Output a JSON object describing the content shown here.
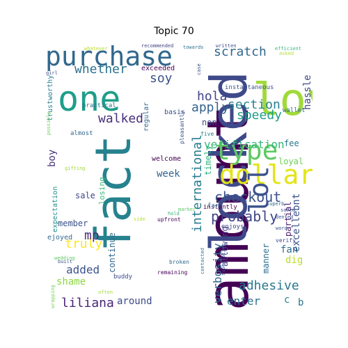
{
  "title": "Topic 70",
  "palette": "viridis",
  "words": [
    {
      "text": "amount",
      "size": 82,
      "color": "#440154"
    },
    {
      "text": "locked",
      "size": 72,
      "color": "#3e4989"
    },
    {
      "text": "fact",
      "size": 70,
      "color": "#26828e"
    },
    {
      "text": "love",
      "size": 64,
      "color": "#a0da39"
    },
    {
      "text": "one",
      "size": 50,
      "color": "#1f9e89"
    },
    {
      "text": "purchase",
      "size": 38,
      "color": "#31688e"
    },
    {
      "text": "type",
      "size": 38,
      "color": "#5ec962"
    },
    {
      "text": "dollar",
      "size": 38,
      "color": "#e3e418"
    },
    {
      "text": "lol",
      "size": 38,
      "color": "#3b528b"
    },
    {
      "text": "checkout",
      "size": 20,
      "color": "#3b528b"
    },
    {
      "text": "probably",
      "size": 20,
      "color": "#404688"
    },
    {
      "text": "international",
      "size": 18,
      "color": "#287c8e"
    },
    {
      "text": "scratch",
      "size": 18,
      "color": "#31688e"
    },
    {
      "text": "section",
      "size": 18,
      "color": "#26828e"
    },
    {
      "text": "speedy",
      "size": 18,
      "color": "#1f9e89"
    },
    {
      "text": "apply",
      "size": 18,
      "color": "#33638d"
    },
    {
      "text": "whether",
      "size": 18,
      "color": "#2c728e"
    },
    {
      "text": "soy",
      "size": 18,
      "color": "#3b528b"
    },
    {
      "text": "hola",
      "size": 18,
      "color": "#414487"
    },
    {
      "text": "verification",
      "size": 16,
      "color": "#35b779"
    },
    {
      "text": "walked",
      "size": 18,
      "color": "#472d7b"
    },
    {
      "text": "adhesive",
      "size": 18,
      "color": "#2a788e"
    },
    {
      "text": "liliana",
      "size": 18,
      "color": "#482475"
    },
    {
      "text": "truly",
      "size": 18,
      "color": "#fde725"
    },
    {
      "text": "mp",
      "size": 18,
      "color": "#472c7a"
    },
    {
      "text": "added",
      "size": 16,
      "color": "#3b528b"
    },
    {
      "text": "verbosity",
      "size": 16,
      "color": "#31688e"
    },
    {
      "text": "enter",
      "size": 16,
      "color": "#2c728e"
    },
    {
      "text": "excellebnt",
      "size": 14,
      "color": "#3b528b"
    },
    {
      "text": "hassle",
      "size": 14,
      "color": "#414487"
    },
    {
      "text": "boy",
      "size": 14,
      "color": "#46337e"
    },
    {
      "text": "week",
      "size": 14,
      "color": "#33638d"
    },
    {
      "text": "dig",
      "size": 14,
      "color": "#b5de2b"
    },
    {
      "text": "fan",
      "size": 14,
      "color": "#2d708e"
    },
    {
      "text": "shame",
      "size": 14,
      "color": "#8fd744"
    },
    {
      "text": "around",
      "size": 14,
      "color": "#3e4989"
    },
    {
      "text": "allowing",
      "size": 12,
      "color": "#433e85"
    },
    {
      "text": "continue",
      "size": 12,
      "color": "#31688e"
    },
    {
      "text": "member",
      "size": 12,
      "color": "#3b528b"
    },
    {
      "text": "sale",
      "size": 12,
      "color": "#414487"
    },
    {
      "text": "loyal",
      "size": 12,
      "color": "#6ece58"
    },
    {
      "text": "fee",
      "size": 12,
      "color": "#2a788e"
    },
    {
      "text": "timely",
      "size": 12,
      "color": "#31b57b"
    },
    {
      "text": "partial",
      "size": 12,
      "color": "#481a6c"
    },
    {
      "text": "manner",
      "size": 12,
      "color": "#2d708e"
    },
    {
      "text": "non",
      "size": 12,
      "color": "#3e4989"
    },
    {
      "text": "c",
      "size": 14,
      "color": "#26828e"
    },
    {
      "text": "b",
      "size": 14,
      "color": "#2c728e"
    },
    {
      "text": "losing",
      "size": 11,
      "color": "#35b779"
    },
    {
      "text": "regular",
      "size": 10,
      "color": "#31688e"
    },
    {
      "text": "exceeded",
      "size": 10,
      "color": "#440154"
    },
    {
      "text": "basis",
      "size": 10,
      "color": "#3b528b"
    },
    {
      "text": "welcome",
      "size": 10,
      "color": "#440154"
    },
    {
      "text": "ejoyed",
      "size": 10,
      "color": "#31688e"
    },
    {
      "text": "expectation",
      "size": 10,
      "color": "#21918c"
    },
    {
      "text": "trustworthy",
      "size": 10,
      "color": "#287c8e"
    },
    {
      "text": "practical",
      "size": 9,
      "color": "#2c728e"
    },
    {
      "text": "almost",
      "size": 9,
      "color": "#31688e"
    },
    {
      "text": "instantaneous",
      "size": 9,
      "color": "#3b528b"
    },
    {
      "text": "wallet",
      "size": 9,
      "color": "#31688e"
    },
    {
      "text": "instantly",
      "size": 9,
      "color": "#440154"
    },
    {
      "text": "enjoys",
      "size": 9,
      "color": "#414487"
    },
    {
      "text": "buddy",
      "size": 9,
      "color": "#3e4989"
    },
    {
      "text": "broken",
      "size": 8,
      "color": "#31688e"
    },
    {
      "text": "remaining",
      "size": 8,
      "color": "#440154"
    },
    {
      "text": "far",
      "size": 9,
      "color": "#31688e"
    },
    {
      "text": "five",
      "size": 8,
      "color": "#26828e"
    },
    {
      "text": "upfront",
      "size": 8,
      "color": "#440154"
    },
    {
      "text": "pleasantly",
      "size": 8,
      "color": "#3b528b"
    },
    {
      "text": "verify",
      "size": 8,
      "color": "#3e4989"
    },
    {
      "text": "word",
      "size": 7,
      "color": "#3b528b"
    },
    {
      "text": "dented",
      "size": 7,
      "color": "#3b528b"
    },
    {
      "text": "saved",
      "size": 7,
      "color": "#3b528b"
    },
    {
      "text": "superb",
      "size": 7,
      "color": "#31688e"
    },
    {
      "text": "hold",
      "size": 7,
      "color": "#35b779"
    },
    {
      "text": "marker",
      "size": 7,
      "color": "#5ec962"
    },
    {
      "text": "side",
      "size": 7,
      "color": "#b5de2b"
    },
    {
      "text": "contacted",
      "size": 7,
      "color": "#2c728e"
    },
    {
      "text": "superlative",
      "size": 7,
      "color": "#3b528b"
    },
    {
      "text": "often",
      "size": 7,
      "color": "#a0da39"
    },
    {
      "text": "built",
      "size": 7,
      "color": "#3b528b"
    },
    {
      "text": "wedding",
      "size": 7,
      "color": "#5ec962"
    },
    {
      "text": "wrapping",
      "size": 7,
      "color": "#7ad151"
    },
    {
      "text": "possibly",
      "size": 7,
      "color": "#6ece58"
    },
    {
      "text": "girl",
      "size": 7,
      "color": "#3b528b"
    },
    {
      "text": "gifting",
      "size": 7,
      "color": "#a0da39"
    },
    {
      "text": "whatever",
      "size": 7,
      "color": "#b5de2b"
    },
    {
      "text": "recommended",
      "size": 7,
      "color": "#414487"
    },
    {
      "text": "towards",
      "size": 7,
      "color": "#2c728e"
    },
    {
      "text": "written",
      "size": 7,
      "color": "#3b528b"
    },
    {
      "text": "efficient",
      "size": 7,
      "color": "#35b779"
    },
    {
      "text": "asked",
      "size": 7,
      "color": "#b5de2b"
    },
    {
      "text": "case",
      "size": 7,
      "color": "#3b528b"
    }
  ]
}
